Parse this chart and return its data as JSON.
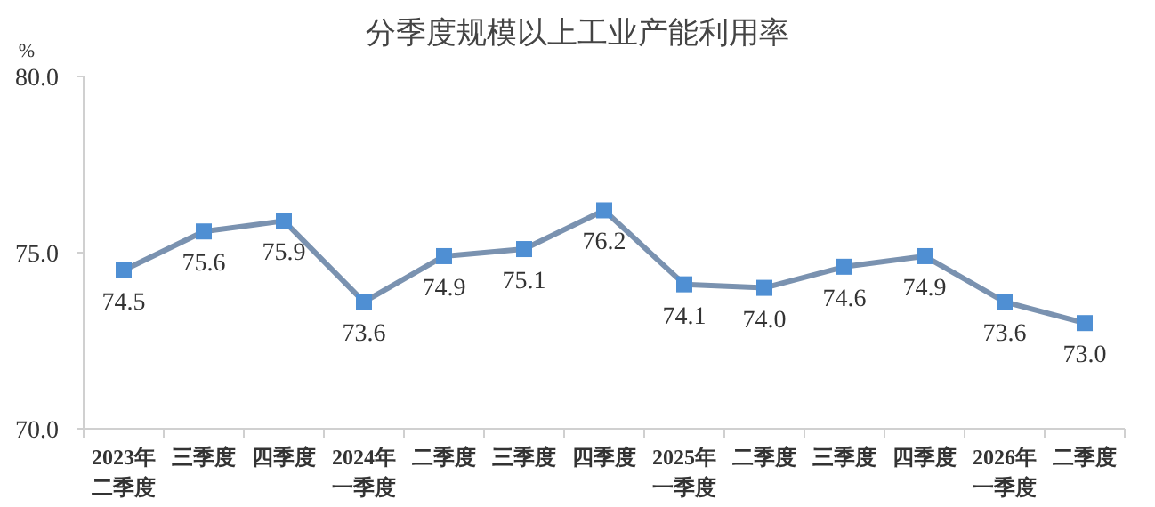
{
  "chart_data": {
    "type": "line",
    "title": "分季度规模以上工业产能利用率",
    "ylabel": "%",
    "categories": [
      "2023年二季度",
      "三季度",
      "四季度",
      "2024年一季度",
      "二季度",
      "三季度",
      "四季度",
      "2025年一季度",
      "二季度",
      "三季度",
      "四季度",
      "2026年一季度",
      "二季度"
    ],
    "series": [
      {
        "color": "#7a92b0",
        "values": [
          74.5,
          75.6,
          75.9,
          73.6,
          74.9,
          75.1,
          76.2,
          74.1,
          74.0,
          74.6,
          74.9,
          73.6,
          73.0
        ],
        "value_labels": [
          "74.5",
          "75.6",
          "75.9",
          "73.6",
          "74.9",
          "75.1",
          "76.2",
          "74.1",
          "74.0",
          "74.6",
          "74.9",
          "73.6",
          "73.0"
        ]
      }
    ],
    "ylim": [
      70,
      80
    ],
    "yticks": [
      {
        "value": 70,
        "label": "70.0"
      },
      {
        "value": 75,
        "label": "75.0"
      },
      {
        "value": 80,
        "label": "80.0"
      }
    ],
    "marker": "square",
    "grid": false
  }
}
